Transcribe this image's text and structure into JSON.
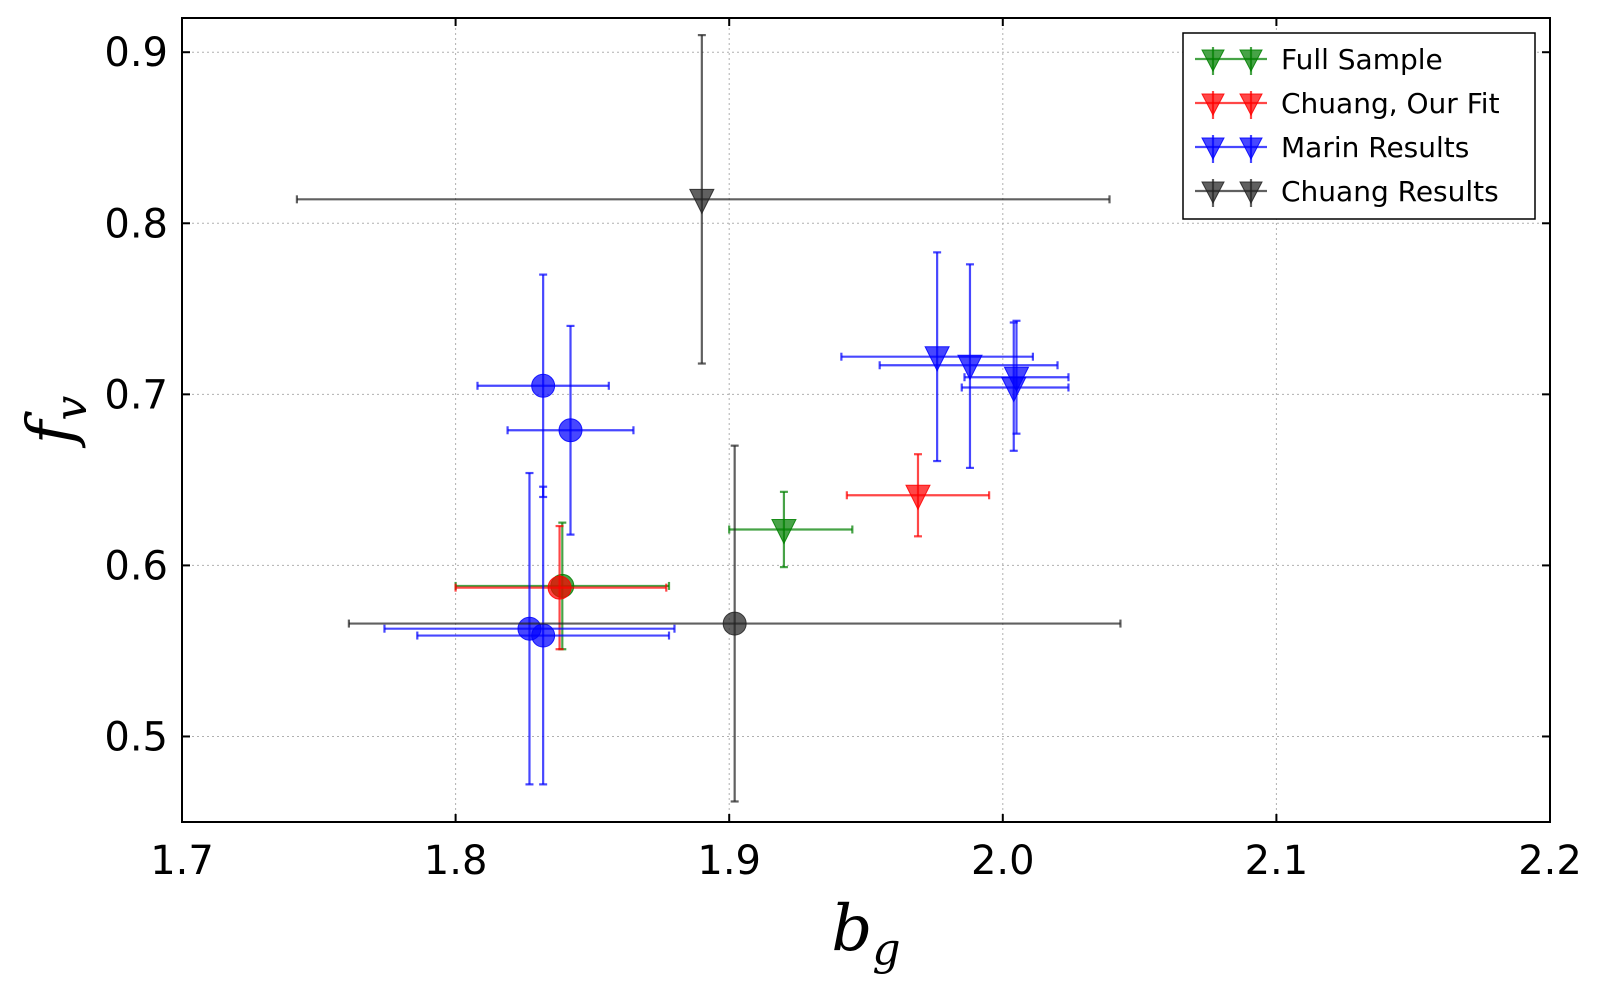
{
  "chart_data": {
    "type": "scatter",
    "title": "",
    "xlabel": "b",
    "xlabel_sub": "g",
    "ylabel": "f",
    "ylabel_sub": "v",
    "xlim": [
      1.7,
      2.2
    ],
    "ylim": [
      0.45,
      0.92
    ],
    "xticks": [
      1.7,
      1.8,
      1.9,
      2.0,
      2.1,
      2.2
    ],
    "xtick_labels": [
      "1.7",
      "1.8",
      "1.9",
      "2.0",
      "2.1",
      "2.2"
    ],
    "yticks": [
      0.5,
      0.6,
      0.7,
      0.8,
      0.9
    ],
    "ytick_labels": [
      "0.5",
      "0.6",
      "0.7",
      "0.8",
      "0.9"
    ],
    "grid": true,
    "legend_position": "top-right",
    "series": [
      {
        "name": "Full Sample",
        "color": "#008000",
        "points": [
          {
            "x": 1.92,
            "y": 0.621,
            "xerr": [
              0.02,
              0.025
            ],
            "yerr": [
              0.022,
              0.022
            ],
            "marker": "triangle"
          },
          {
            "x": 1.839,
            "y": 0.588,
            "xerr": [
              0.039,
              0.039
            ],
            "yerr": [
              0.037,
              0.037
            ],
            "marker": "circle"
          }
        ]
      },
      {
        "name": "Chuang, Our Fit",
        "color": "#ff0000",
        "points": [
          {
            "x": 1.969,
            "y": 0.641,
            "xerr": [
              0.026,
              0.026
            ],
            "yerr": [
              0.024,
              0.024
            ],
            "marker": "triangle"
          },
          {
            "x": 1.838,
            "y": 0.587,
            "xerr": [
              0.038,
              0.039
            ],
            "yerr": [
              0.036,
              0.036
            ],
            "marker": "circle"
          }
        ]
      },
      {
        "name": "Marin Results",
        "color": "#0000ff",
        "points": [
          {
            "x": 1.976,
            "y": 0.722,
            "xerr": [
              0.035,
              0.035
            ],
            "yerr": [
              0.061,
              0.061
            ],
            "marker": "triangle"
          },
          {
            "x": 1.988,
            "y": 0.717,
            "xerr": [
              0.033,
              0.032
            ],
            "yerr": [
              0.06,
              0.059
            ],
            "marker": "triangle"
          },
          {
            "x": 2.005,
            "y": 0.71,
            "xerr": [
              0.019,
              0.019
            ],
            "yerr": [
              0.033,
              0.033
            ],
            "marker": "triangle"
          },
          {
            "x": 2.004,
            "y": 0.704,
            "xerr": [
              0.019,
              0.02
            ],
            "yerr": [
              0.037,
              0.038
            ],
            "marker": "triangle"
          },
          {
            "x": 1.832,
            "y": 0.705,
            "xerr": [
              0.024,
              0.024
            ],
            "yerr": [
              0.065,
              0.065
            ],
            "marker": "circle"
          },
          {
            "x": 1.842,
            "y": 0.679,
            "xerr": [
              0.023,
              0.023
            ],
            "yerr": [
              0.061,
              0.061
            ],
            "marker": "circle"
          },
          {
            "x": 1.827,
            "y": 0.563,
            "xerr": [
              0.053,
              0.053
            ],
            "yerr": [
              0.091,
              0.091
            ],
            "marker": "circle"
          },
          {
            "x": 1.832,
            "y": 0.559,
            "xerr": [
              0.046,
              0.046
            ],
            "yerr": [
              0.087,
              0.087
            ],
            "marker": "circle"
          }
        ]
      },
      {
        "name": "Chuang Results",
        "color": "#222222",
        "points": [
          {
            "x": 1.89,
            "y": 0.814,
            "xerr": [
              0.148,
              0.149
            ],
            "yerr": [
              0.096,
              0.096
            ],
            "marker": "triangle"
          },
          {
            "x": 1.902,
            "y": 0.566,
            "xerr": [
              0.141,
              0.141
            ],
            "yerr": [
              0.104,
              0.104
            ],
            "marker": "circle"
          }
        ]
      }
    ]
  }
}
